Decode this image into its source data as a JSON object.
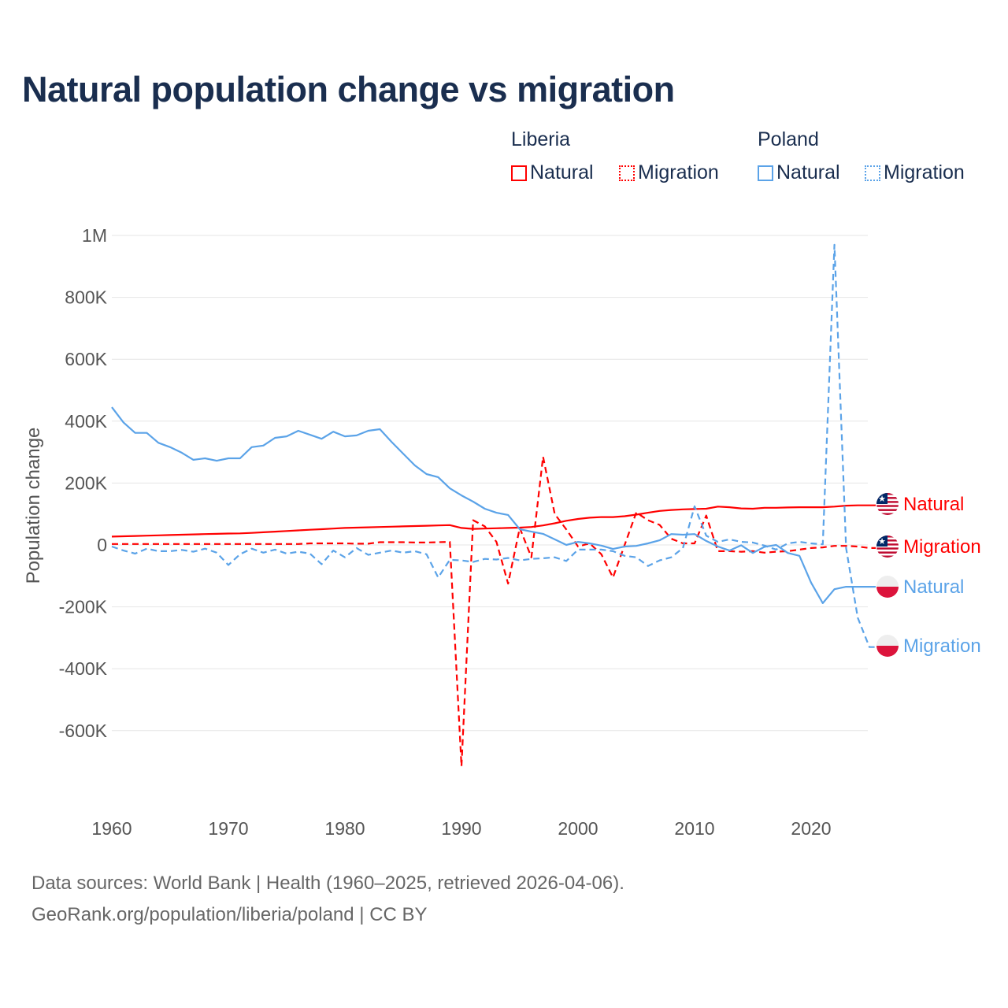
{
  "title": "Natural population change vs migration",
  "legend": {
    "groups": [
      {
        "name": "Liberia",
        "color": "#ff0000",
        "items": [
          "Natural",
          "Migration"
        ]
      },
      {
        "name": "Poland",
        "color": "#5ba3e8",
        "items": [
          "Natural",
          "Migration"
        ]
      }
    ]
  },
  "footer": {
    "line1": "Data sources: World Bank | Health (1960–2025, retrieved 2026-04-06).",
    "line2": "GeoRank.org/population/liberia/poland | CC BY"
  },
  "chart_data": {
    "type": "line",
    "title": "Natural population change vs migration",
    "xlabel": "",
    "ylabel": "Population change",
    "xlim": [
      1960,
      2025
    ],
    "ylim": [
      -800000,
      1000000
    ],
    "grid": true,
    "legend_position": "top-right",
    "x_ticks": [
      1960,
      1970,
      1980,
      1990,
      2000,
      2010,
      2020
    ],
    "x_tick_labels": [
      "1960",
      "1970",
      "1980",
      "1990",
      "2000",
      "2010",
      "2020"
    ],
    "y_ticks": [
      1000000,
      800000,
      600000,
      400000,
      200000,
      0,
      -200000,
      -400000,
      -600000
    ],
    "y_tick_labels": [
      "1M",
      "800K",
      "600K",
      "400K",
      "200K",
      "0",
      "-200K",
      "-400K",
      "-600K"
    ],
    "x_start": 1960,
    "series": [
      {
        "name": "Liberia Natural",
        "end_label": "Natural",
        "country": "Liberia",
        "color": "#ff0000",
        "dash": false,
        "values": [
          27000,
          28000,
          29000,
          30000,
          31000,
          32000,
          33000,
          34000,
          35000,
          36000,
          37000,
          37500,
          39000,
          41000,
          43000,
          45000,
          47000,
          49000,
          51000,
          53000,
          55000,
          56000,
          57000,
          58000,
          59000,
          60000,
          61000,
          62000,
          63000,
          64000,
          55000,
          52000,
          53000,
          54000,
          55000,
          56000,
          58000,
          63000,
          70000,
          78000,
          84000,
          88000,
          90000,
          90000,
          93000,
          98000,
          104000,
          110000,
          113000,
          115000,
          116000,
          117000,
          124000,
          122000,
          118000,
          117000,
          120000,
          120000,
          121000,
          122000,
          122000,
          122000,
          124000,
          127000,
          128000,
          128000
        ]
      },
      {
        "name": "Liberia Migration",
        "end_label": "Migration",
        "country": "Liberia",
        "color": "#ff0000",
        "dash": true,
        "values": [
          3000,
          3000,
          3000,
          3000,
          3000,
          3000,
          3000,
          3000,
          3000,
          3000,
          3000,
          3000,
          3000,
          3000,
          3000,
          3000,
          3000,
          5000,
          5000,
          5000,
          5000,
          4000,
          4000,
          9000,
          9000,
          9000,
          8000,
          8000,
          9000,
          10000,
          -715000,
          80000,
          60000,
          10000,
          -125000,
          55000,
          -40000,
          285000,
          100000,
          50000,
          -5000,
          5000,
          -30000,
          -105000,
          0,
          105000,
          80000,
          65000,
          20000,
          5000,
          5000,
          95000,
          -20000,
          -20000,
          -22000,
          -20000,
          -25000,
          -22000,
          -20000,
          -15000,
          -10000,
          -8000,
          -3000,
          -3000,
          -5000,
          -10000
        ]
      },
      {
        "name": "Poland Natural",
        "end_label": "Natural",
        "country": "Poland",
        "color": "#5ba3e8",
        "dash": false,
        "values": [
          445000,
          396000,
          362000,
          362000,
          330000,
          316000,
          298000,
          275000,
          280000,
          272000,
          280000,
          280000,
          316000,
          321000,
          346000,
          351000,
          369000,
          356000,
          343000,
          366000,
          351000,
          354000,
          369000,
          374000,
          333000,
          295000,
          257000,
          229000,
          219000,
          183000,
          160000,
          140000,
          117000,
          104000,
          97000,
          51000,
          43000,
          36000,
          18000,
          0,
          10000,
          5000,
          -2000,
          -13000,
          -5000,
          -3000,
          5000,
          15000,
          35000,
          33000,
          35000,
          13000,
          -5000,
          -18000,
          -1000,
          -26000,
          -6000,
          0,
          -26000,
          -35000,
          -122000,
          -188000,
          -143000,
          -135000,
          -135000,
          -135000
        ]
      },
      {
        "name": "Poland Migration",
        "end_label": "Migration",
        "country": "Poland",
        "color": "#5ba3e8",
        "dash": true,
        "values": [
          -5000,
          -18000,
          -28000,
          -12000,
          -20000,
          -20000,
          -16000,
          -22000,
          -12000,
          -25000,
          -65000,
          -30000,
          -12000,
          -25000,
          -15000,
          -28000,
          -22000,
          -28000,
          -62000,
          -18000,
          -40000,
          -10000,
          -32000,
          -25000,
          -18000,
          -25000,
          -20000,
          -30000,
          -105000,
          -48000,
          -50000,
          -55000,
          -45000,
          -47000,
          -42000,
          -50000,
          -45000,
          -43000,
          -40000,
          -52000,
          -15000,
          -15000,
          -15000,
          -20000,
          -35000,
          -40000,
          -68000,
          -50000,
          -40000,
          -10000,
          125000,
          30000,
          10000,
          18000,
          10000,
          8000,
          -2000,
          -15000,
          5000,
          10000,
          5000,
          2000,
          970000,
          -10000,
          -235000,
          -330000
        ]
      }
    ]
  }
}
